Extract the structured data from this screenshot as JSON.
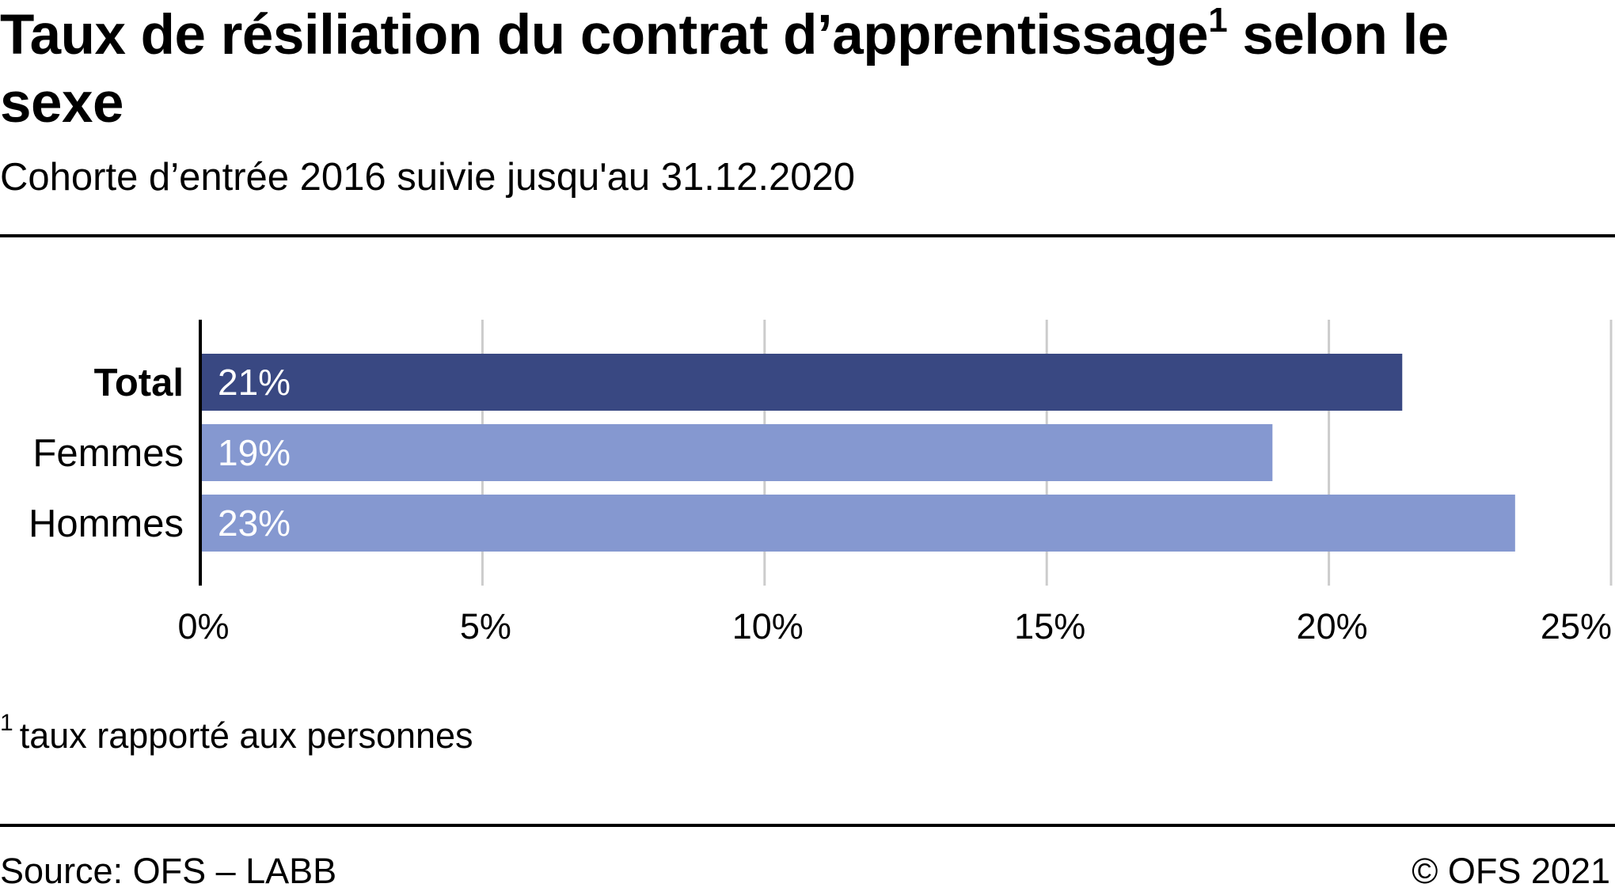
{
  "header": {
    "title": "Taux de résiliation du contrat d’apprentissage",
    "title_note_marker": "1",
    "title_rest": " selon le sexe",
    "subtitle": "Cohorte d’entrée 2016 suivie jusqu'au 31.12.2020"
  },
  "chart_data": {
    "type": "bar",
    "orientation": "horizontal",
    "categories": [
      "Total",
      "Femmes",
      "Hommes"
    ],
    "values": [
      21.3,
      19.0,
      23.3
    ],
    "data_labels": [
      "21%",
      "19%",
      "23%"
    ],
    "xlim": [
      0,
      25
    ],
    "x_ticks": [
      0,
      5,
      10,
      15,
      20,
      25
    ],
    "x_tick_labels": [
      "0%",
      "5%",
      "10%",
      "15%",
      "20%",
      "25%"
    ],
    "grid": true,
    "colors": [
      "#394882",
      "#8598d0",
      "#8598d0"
    ],
    "label_color": "#ffffff",
    "grid_color": "#cccccc",
    "bold_categories": [
      "Total"
    ]
  },
  "footer": {
    "footnote_marker": "1",
    "footnote": "taux rapporté aux personnes",
    "source": "Source: OFS – LABB",
    "copyright": "© OFS 2021"
  }
}
